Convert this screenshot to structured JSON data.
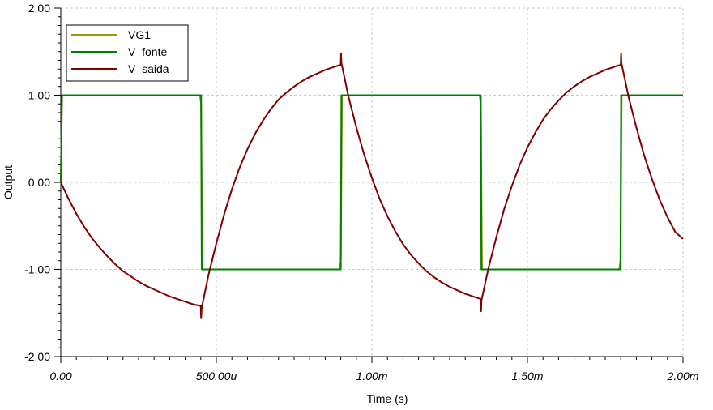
{
  "chart_data": {
    "type": "line",
    "title": "",
    "xlabel": "Time (s)",
    "ylabel": "Output",
    "xlim": [
      0,
      0.002
    ],
    "ylim": [
      -2,
      2
    ],
    "grid": true,
    "legend_position": "top-left",
    "x_ticks": [
      {
        "value": 0,
        "label": "0.00"
      },
      {
        "value": 0.0005,
        "label": "500.00u"
      },
      {
        "value": 0.001,
        "label": "1.00m"
      },
      {
        "value": 0.0015,
        "label": "1.50m"
      },
      {
        "value": 0.002,
        "label": "2.00m"
      }
    ],
    "y_ticks": [
      {
        "value": 2,
        "label": "2.00"
      },
      {
        "value": 1,
        "label": "1.00"
      },
      {
        "value": 0,
        "label": "0.00"
      },
      {
        "value": -1,
        "label": "-1.00"
      },
      {
        "value": -2,
        "label": "-2.00"
      }
    ],
    "series": [
      {
        "name": "VG1",
        "color": "#999900",
        "x": [
          0,
          4e-06,
          0.000447,
          0.000451,
          0.000455,
          0.000896,
          0.0009,
          0.000904,
          0.001346,
          0.00135,
          0.001354,
          0.001795,
          0.001799,
          0.001803,
          0.002
        ],
        "y": [
          0,
          1,
          1,
          0.9,
          -1,
          -1,
          -0.9,
          1,
          1,
          0.9,
          -1,
          -1,
          -0.9,
          1,
          1
        ]
      },
      {
        "name": "V_fonte",
        "color": "#008000",
        "x": [
          0,
          4e-06,
          0.000451,
          0.000453,
          0.0009,
          0.000902,
          0.00135,
          0.001352,
          0.001799,
          0.001801,
          0.002
        ],
        "y": [
          0,
          1,
          1,
          -1,
          -1,
          1,
          1,
          -1,
          -1,
          1,
          1
        ]
      },
      {
        "name": "V_saida",
        "color": "#800000",
        "x": [
          0,
          2.5e-05,
          5e-05,
          7.5e-05,
          0.0001,
          0.000125,
          0.00015,
          0.000175,
          0.0002,
          0.000225,
          0.00025,
          0.000275,
          0.0003,
          0.000325,
          0.00035,
          0.000375,
          0.0004,
          0.000425,
          0.00045,
          0.000451,
          0.000453,
          0.000475,
          0.0005,
          0.000525,
          0.00055,
          0.000575,
          0.0006,
          0.000625,
          0.00065,
          0.000675,
          0.0007,
          0.000725,
          0.00075,
          0.000775,
          0.0008,
          0.000825,
          0.00085,
          0.000875,
          0.0009,
          0.000901,
          0.000902,
          0.000925,
          0.00095,
          0.000975,
          0.001,
          0.001025,
          0.00105,
          0.001075,
          0.0011,
          0.001125,
          0.00115,
          0.001175,
          0.0012,
          0.001225,
          0.00125,
          0.001275,
          0.0013,
          0.001325,
          0.00135,
          0.001351,
          0.001352,
          0.001375,
          0.0014,
          0.001425,
          0.00145,
          0.001475,
          0.0015,
          0.001525,
          0.00155,
          0.001575,
          0.0016,
          0.001625,
          0.00165,
          0.001675,
          0.0017,
          0.001725,
          0.00175,
          0.001775,
          0.0018,
          0.001801,
          0.001802,
          0.001825,
          0.00185,
          0.001875,
          0.0019,
          0.001925,
          0.00195,
          0.001975,
          0.002
        ],
        "y": [
          0,
          -0.19,
          -0.36,
          -0.51,
          -0.64,
          -0.75,
          -0.85,
          -0.94,
          -1.02,
          -1.08,
          -1.14,
          -1.19,
          -1.23,
          -1.27,
          -1.31,
          -1.34,
          -1.37,
          -1.4,
          -1.42,
          -1.56,
          -1.44,
          -1.06,
          -0.7,
          -0.37,
          -0.08,
          0.17,
          0.38,
          0.56,
          0.71,
          0.84,
          0.95,
          1.03,
          1.1,
          1.16,
          1.21,
          1.25,
          1.29,
          1.32,
          1.35,
          1.48,
          1.37,
          0.98,
          0.63,
          0.32,
          0.05,
          -0.19,
          -0.39,
          -0.56,
          -0.71,
          -0.83,
          -0.93,
          -1.02,
          -1.09,
          -1.15,
          -1.2,
          -1.24,
          -1.28,
          -1.31,
          -1.34,
          -1.48,
          -1.36,
          -0.98,
          -0.63,
          -0.31,
          -0.04,
          0.2,
          0.4,
          0.57,
          0.72,
          0.84,
          0.94,
          1.03,
          1.1,
          1.16,
          1.21,
          1.25,
          1.29,
          1.32,
          1.35,
          1.48,
          1.37,
          0.98,
          0.63,
          0.31,
          0.04,
          -0.2,
          -0.4,
          -0.57,
          -0.65
        ]
      }
    ]
  }
}
